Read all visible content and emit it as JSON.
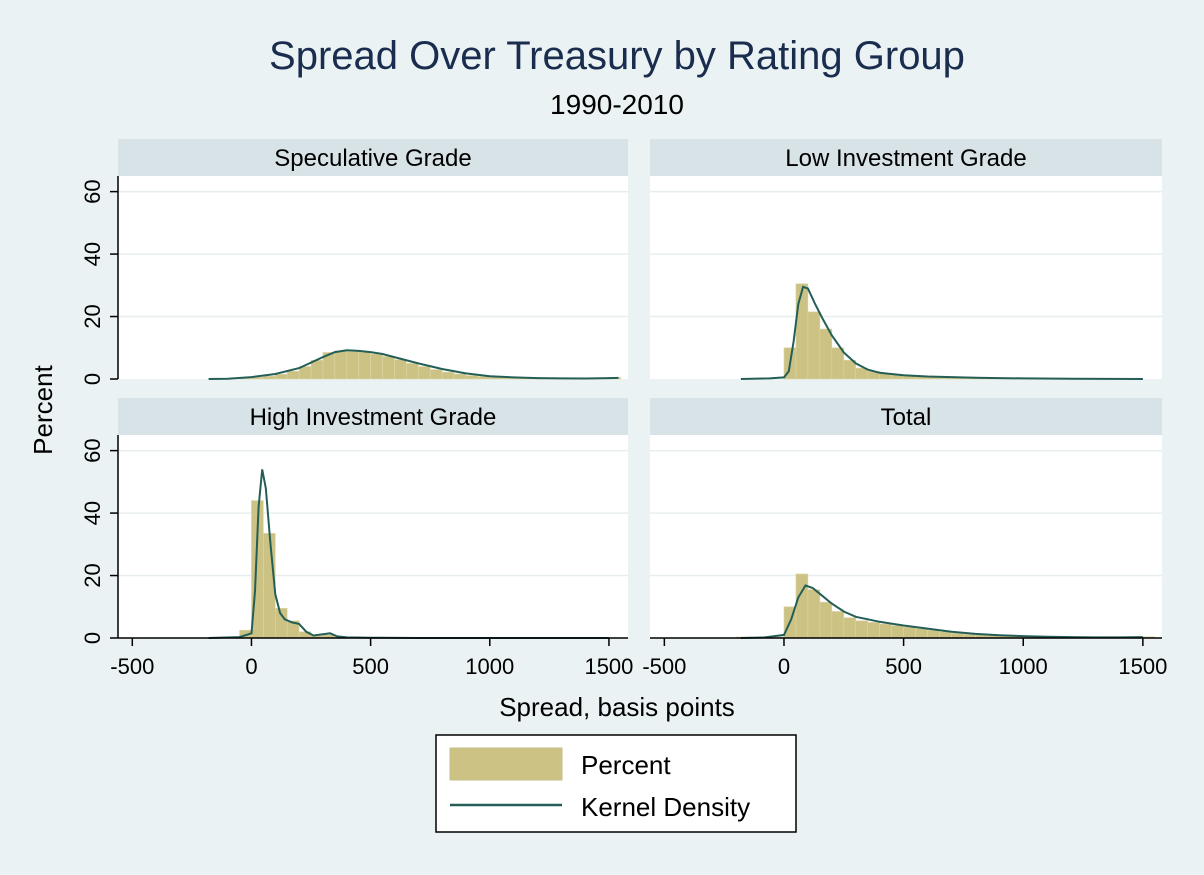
{
  "chart_data": {
    "type": "bar",
    "title": "Spread Over Treasury by Rating Group",
    "subtitle": "1990-2010",
    "xlabel": "Spread, basis points",
    "ylabel": "Percent",
    "xlim": [
      -560,
      1580
    ],
    "ylim": [
      0,
      65
    ],
    "x_ticks": [
      -500,
      0,
      500,
      1000,
      1500
    ],
    "y_ticks": [
      0,
      20,
      40,
      60
    ],
    "grid": true,
    "legend_position": "bottom-center",
    "legend": [
      "Percent",
      "Kernel Density"
    ],
    "colors": {
      "bars": "#ccc284",
      "density": "#245f57",
      "strip": "#d8e3e8",
      "panel": "#ffffff",
      "background": "#eaf2f3"
    },
    "bin_width": 50,
    "panels": [
      {
        "title": "Speculative Grade",
        "bins": [
          [
            -25,
            0.3
          ],
          [
            25,
            0.6
          ],
          [
            75,
            0.9
          ],
          [
            125,
            1.5
          ],
          [
            175,
            2.5
          ],
          [
            225,
            4.0
          ],
          [
            275,
            6.0
          ],
          [
            325,
            8.5
          ],
          [
            375,
            9.0
          ],
          [
            425,
            8.8
          ],
          [
            475,
            8.6
          ],
          [
            525,
            8.0
          ],
          [
            575,
            7.2
          ],
          [
            625,
            6.2
          ],
          [
            675,
            5.0
          ],
          [
            725,
            4.0
          ],
          [
            775,
            3.0
          ],
          [
            825,
            2.2
          ],
          [
            875,
            1.6
          ],
          [
            925,
            1.1
          ],
          [
            975,
            0.8
          ],
          [
            1025,
            0.6
          ],
          [
            1075,
            0.4
          ],
          [
            1125,
            0.3
          ],
          [
            1175,
            0.3
          ],
          [
            1225,
            0.2
          ],
          [
            1275,
            0.2
          ],
          [
            1325,
            0.2
          ],
          [
            1375,
            0.2
          ],
          [
            1425,
            0.2
          ],
          [
            1475,
            0.3
          ],
          [
            1525,
            0.5
          ]
        ],
        "density": [
          [
            -180,
            0.0
          ],
          [
            -100,
            0.1
          ],
          [
            0,
            0.6
          ],
          [
            100,
            1.6
          ],
          [
            200,
            3.5
          ],
          [
            300,
            7.0
          ],
          [
            350,
            8.6
          ],
          [
            400,
            9.2
          ],
          [
            450,
            9.0
          ],
          [
            500,
            8.6
          ],
          [
            550,
            8.0
          ],
          [
            600,
            7.0
          ],
          [
            700,
            5.0
          ],
          [
            800,
            3.2
          ],
          [
            900,
            1.8
          ],
          [
            1000,
            0.9
          ],
          [
            1100,
            0.5
          ],
          [
            1200,
            0.3
          ],
          [
            1300,
            0.2
          ],
          [
            1400,
            0.15
          ],
          [
            1500,
            0.3
          ],
          [
            1540,
            0.35
          ]
        ]
      },
      {
        "title": "Low Investment Grade",
        "bins": [
          [
            25,
            10.0
          ],
          [
            75,
            30.5
          ],
          [
            125,
            21.5
          ],
          [
            175,
            16.0
          ],
          [
            225,
            10.0
          ],
          [
            275,
            6.0
          ],
          [
            325,
            3.5
          ],
          [
            375,
            2.5
          ],
          [
            425,
            1.8
          ],
          [
            475,
            1.4
          ],
          [
            525,
            1.1
          ],
          [
            575,
            0.9
          ],
          [
            625,
            0.8
          ],
          [
            675,
            0.7
          ],
          [
            725,
            0.6
          ],
          [
            775,
            0.6
          ],
          [
            825,
            0.5
          ],
          [
            875,
            0.5
          ],
          [
            925,
            0.4
          ],
          [
            975,
            0.4
          ],
          [
            1025,
            0.3
          ],
          [
            1075,
            0.3
          ],
          [
            1125,
            0.3
          ],
          [
            1175,
            0.3
          ]
        ],
        "density": [
          [
            -180,
            0.0
          ],
          [
            -60,
            0.2
          ],
          [
            0,
            0.5
          ],
          [
            20,
            2.5
          ],
          [
            40,
            12.0
          ],
          [
            60,
            24.0
          ],
          [
            80,
            29.5
          ],
          [
            100,
            29.0
          ],
          [
            130,
            24.0
          ],
          [
            160,
            19.5
          ],
          [
            200,
            14.0
          ],
          [
            250,
            8.5
          ],
          [
            300,
            5.0
          ],
          [
            350,
            3.0
          ],
          [
            400,
            2.0
          ],
          [
            500,
            1.2
          ],
          [
            600,
            0.8
          ],
          [
            700,
            0.6
          ],
          [
            800,
            0.4
          ],
          [
            900,
            0.3
          ],
          [
            1000,
            0.2
          ],
          [
            1200,
            0.1
          ],
          [
            1500,
            0.0
          ]
        ]
      },
      {
        "title": "High Investment Grade",
        "bins": [
          [
            -25,
            2.5
          ],
          [
            25,
            44.0
          ],
          [
            75,
            33.5
          ],
          [
            125,
            9.5
          ],
          [
            175,
            5.5
          ],
          [
            225,
            2.0
          ],
          [
            275,
            0.7
          ],
          [
            325,
            1.0
          ],
          [
            375,
            0.3
          ],
          [
            425,
            0.2
          ],
          [
            475,
            0.2
          ],
          [
            525,
            0.1
          ],
          [
            575,
            0.1
          ]
        ],
        "density": [
          [
            -180,
            0.0
          ],
          [
            -50,
            0.3
          ],
          [
            0,
            1.5
          ],
          [
            15,
            15.0
          ],
          [
            30,
            42.0
          ],
          [
            45,
            54.0
          ],
          [
            60,
            48.0
          ],
          [
            80,
            30.0
          ],
          [
            100,
            14.0
          ],
          [
            120,
            8.0
          ],
          [
            140,
            6.0
          ],
          [
            170,
            5.0
          ],
          [
            200,
            4.5
          ],
          [
            230,
            2.0
          ],
          [
            260,
            0.8
          ],
          [
            300,
            1.2
          ],
          [
            330,
            1.5
          ],
          [
            360,
            0.5
          ],
          [
            400,
            0.2
          ],
          [
            500,
            0.1
          ],
          [
            700,
            0.0
          ],
          [
            1000,
            0.0
          ],
          [
            1500,
            0.0
          ]
        ]
      },
      {
        "title": "Total",
        "bins": [
          [
            -175,
            0.3
          ],
          [
            -125,
            0.3
          ],
          [
            -75,
            0.3
          ],
          [
            -25,
            0.3
          ],
          [
            25,
            10.0
          ],
          [
            75,
            20.5
          ],
          [
            125,
            15.5
          ],
          [
            175,
            11.5
          ],
          [
            225,
            8.5
          ],
          [
            275,
            6.5
          ],
          [
            325,
            5.5
          ],
          [
            375,
            5.0
          ],
          [
            425,
            4.5
          ],
          [
            475,
            4.0
          ],
          [
            525,
            3.5
          ],
          [
            575,
            3.0
          ],
          [
            625,
            2.5
          ],
          [
            675,
            2.0
          ],
          [
            725,
            1.5
          ],
          [
            775,
            1.2
          ],
          [
            825,
            1.0
          ],
          [
            875,
            0.8
          ],
          [
            925,
            0.7
          ],
          [
            975,
            0.6
          ],
          [
            1025,
            0.5
          ],
          [
            1075,
            0.4
          ],
          [
            1125,
            0.4
          ],
          [
            1175,
            0.3
          ],
          [
            1225,
            0.3
          ],
          [
            1275,
            0.3
          ],
          [
            1325,
            0.2
          ],
          [
            1375,
            0.2
          ],
          [
            1425,
            0.2
          ],
          [
            1475,
            0.3
          ],
          [
            1525,
            0.4
          ]
        ],
        "density": [
          [
            -180,
            0.0
          ],
          [
            -80,
            0.2
          ],
          [
            0,
            1.0
          ],
          [
            30,
            6.0
          ],
          [
            60,
            13.0
          ],
          [
            90,
            16.8
          ],
          [
            120,
            16.0
          ],
          [
            160,
            13.5
          ],
          [
            200,
            11.0
          ],
          [
            250,
            8.5
          ],
          [
            300,
            6.8
          ],
          [
            400,
            5.2
          ],
          [
            500,
            4.0
          ],
          [
            600,
            3.0
          ],
          [
            700,
            2.0
          ],
          [
            800,
            1.3
          ],
          [
            900,
            0.9
          ],
          [
            1000,
            0.6
          ],
          [
            1100,
            0.4
          ],
          [
            1200,
            0.3
          ],
          [
            1300,
            0.2
          ],
          [
            1400,
            0.2
          ],
          [
            1500,
            0.3
          ]
        ]
      }
    ]
  }
}
